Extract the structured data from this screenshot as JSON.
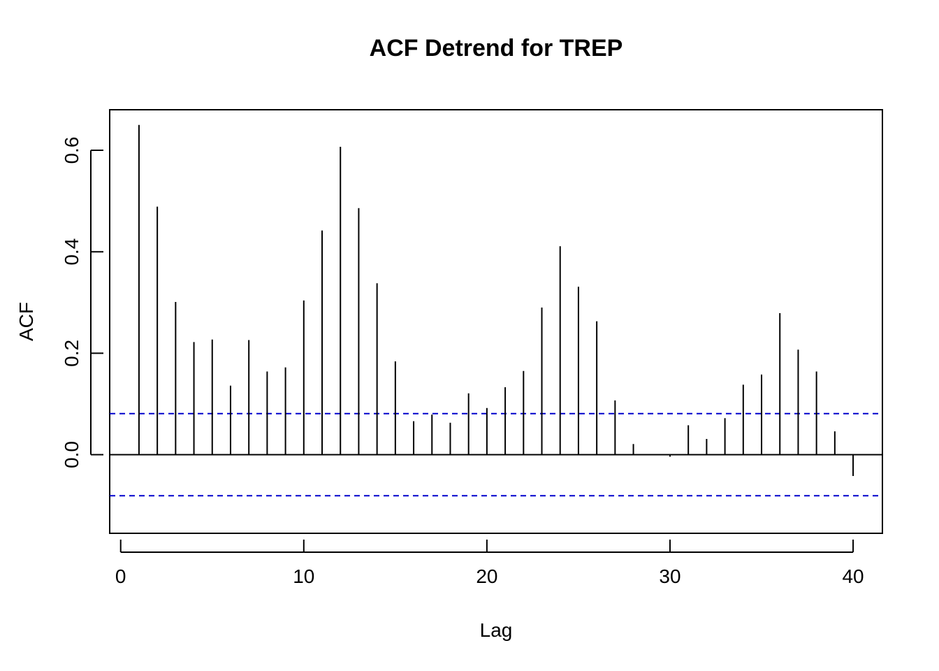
{
  "chart_data": {
    "type": "bar",
    "title": "ACF Detrend for TREP",
    "xlabel": "Lag",
    "ylabel": "ACF",
    "xlim": [
      -0.6,
      41.6
    ],
    "ylim": [
      -0.155,
      0.68
    ],
    "x_ticks": [
      0,
      10,
      20,
      30,
      40
    ],
    "x_tick_labels": [
      "0",
      "10",
      "20",
      "30",
      "40"
    ],
    "y_ticks": [
      0.0,
      0.2,
      0.4,
      0.6
    ],
    "y_tick_labels": [
      "0.0",
      "0.2",
      "0.4",
      "0.6"
    ],
    "confidence_band": [
      0.081,
      -0.081
    ],
    "grid": false,
    "series": [
      {
        "lags": [
          1,
          2,
          3,
          4,
          5,
          6,
          7,
          8,
          9,
          10,
          11,
          12,
          13,
          14,
          15,
          16,
          17,
          18,
          19,
          20,
          21,
          22,
          23,
          24,
          25,
          26,
          27,
          28,
          29,
          30,
          31,
          32,
          33,
          34,
          35,
          36,
          37,
          38,
          39,
          40
        ],
        "values": [
          0.65,
          0.489,
          0.301,
          0.222,
          0.227,
          0.136,
          0.226,
          0.164,
          0.172,
          0.304,
          0.442,
          0.607,
          0.486,
          0.338,
          0.184,
          0.066,
          0.079,
          0.063,
          0.121,
          0.092,
          0.133,
          0.165,
          0.29,
          0.411,
          0.331,
          0.263,
          0.107,
          0.021,
          0.0,
          -0.004,
          0.058,
          0.031,
          0.072,
          0.138,
          0.158,
          0.279,
          0.207,
          0.164,
          0.046,
          -0.042
        ]
      }
    ],
    "colors": {
      "spikes": "#000000",
      "confidence": "#0000cc",
      "axes": "#000000"
    }
  }
}
